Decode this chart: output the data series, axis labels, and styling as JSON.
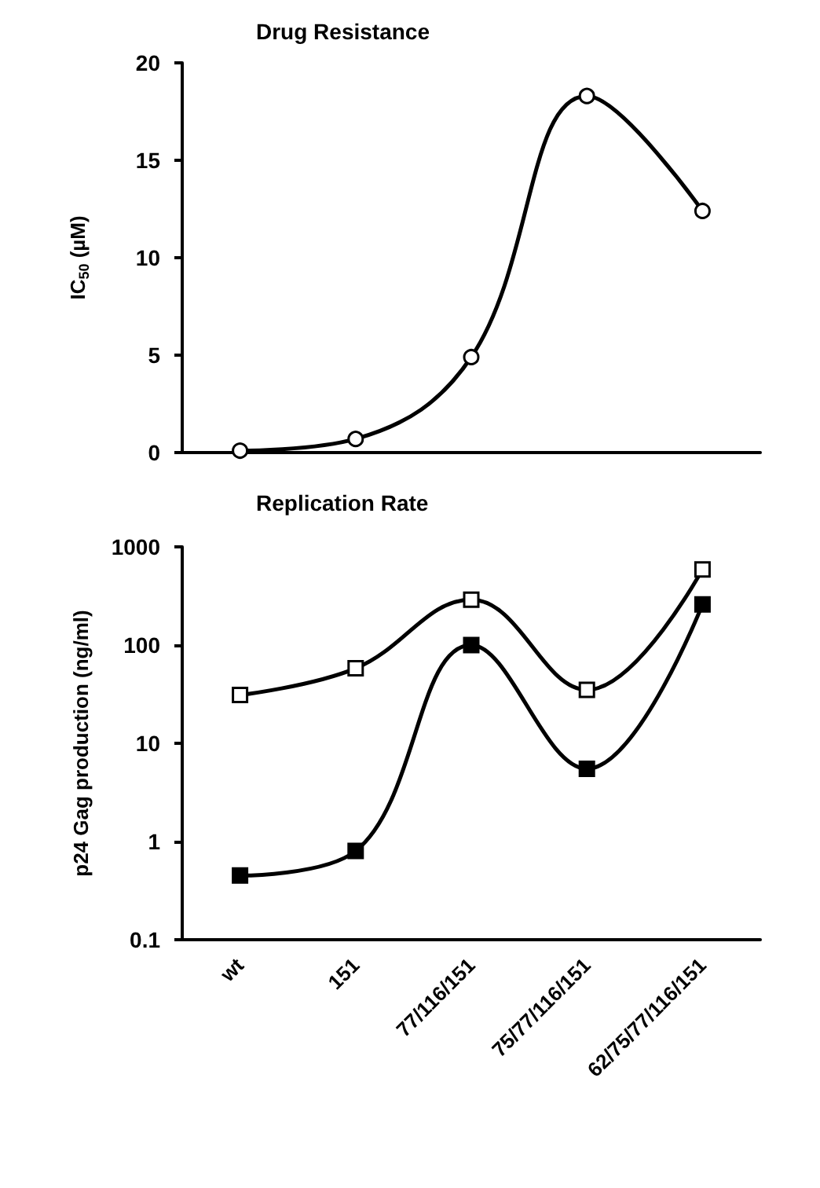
{
  "chart_data": [
    {
      "type": "line",
      "title": "Drug Resistance",
      "ylabel": "IC$_{50}$ (µM)",
      "categories": [
        null,
        null,
        null,
        null,
        null
      ],
      "marker": "circle",
      "ylim": [
        0,
        20
      ],
      "yticks": [
        0,
        5,
        10,
        15,
        20
      ],
      "series": [
        {
          "color": "#000000",
          "values": [
            0.1,
            0.7,
            4.9,
            18.3,
            12.4
          ]
        }
      ]
    },
    {
      "type": "line",
      "title": "Replication Rate",
      "ylabel": "p24 Gag production (ng/ml)",
      "categories": [
        "wt",
        "151",
        "77/116/151",
        "75/77/116/151",
        "62/75/77/116/151"
      ],
      "marker": "square",
      "log": "y",
      "ylim": [
        0.1,
        1000
      ],
      "yticks": [
        0.1,
        1,
        10,
        100,
        1000
      ],
      "series": [
        {
          "color": "#000000",
          "values": [
            31,
            58,
            290,
            35,
            590
          ]
        },
        {
          "color": "#000000",
          "values": [
            0.45,
            0.8,
            100,
            5.5,
            260
          ]
        }
      ]
    }
  ]
}
